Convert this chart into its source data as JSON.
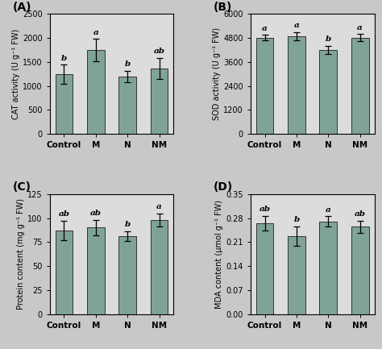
{
  "bar_color": "#7fa399",
  "edge_color": "#333333",
  "bg_color": "#e8e8e8",
  "fig_bg": "#d8d8d8",
  "categories": [
    "Control",
    "M",
    "N",
    "NM"
  ],
  "panels": [
    {
      "label": "A",
      "ylabel": "CAT activity (U g⁻¹ FW)",
      "ylim": [
        0,
        2500
      ],
      "yticks": [
        0,
        500,
        1000,
        1500,
        2000,
        2500
      ],
      "ytick_labels": [
        "0",
        "500",
        "1000",
        "1500",
        "2000",
        "2500"
      ],
      "values": [
        1240,
        1750,
        1200,
        1360
      ],
      "errors": [
        200,
        230,
        120,
        220
      ],
      "sig_labels": [
        "b",
        "a",
        "b",
        "ab"
      ]
    },
    {
      "label": "B",
      "ylabel": "SOD activity (U g⁻¹ FW)",
      "ylim": [
        0,
        6000
      ],
      "yticks": [
        0,
        1200,
        2400,
        3600,
        4800,
        6000
      ],
      "ytick_labels": [
        "0",
        "1200",
        "2400",
        "3600",
        "4800",
        "6000"
      ],
      "values": [
        4820,
        4900,
        4200,
        4820
      ],
      "errors": [
        130,
        200,
        200,
        170
      ],
      "sig_labels": [
        "a",
        "a",
        "b",
        "a"
      ]
    },
    {
      "label": "C",
      "ylabel": "Protein content (mg g⁻¹ FW)",
      "ylim": [
        0,
        125
      ],
      "yticks": [
        0,
        25,
        50,
        75,
        100,
        125
      ],
      "ytick_labels": [
        "0",
        "25",
        "50",
        "75",
        "100",
        "125"
      ],
      "values": [
        87,
        90,
        81,
        98
      ],
      "errors": [
        10,
        8,
        5,
        7
      ],
      "sig_labels": [
        "ab",
        "ab",
        "b",
        "a"
      ]
    },
    {
      "label": "D",
      "ylabel": "MDA content (μmol g⁻¹ FW)",
      "ylim": [
        0.0,
        0.35
      ],
      "yticks": [
        0.0,
        0.07,
        0.14,
        0.21,
        0.28,
        0.35
      ],
      "ytick_labels": [
        "0.00",
        "0.07",
        "0.14",
        "0.21",
        "0.28",
        "0.35"
      ],
      "values": [
        0.265,
        0.228,
        0.27,
        0.255
      ],
      "errors": [
        0.022,
        0.028,
        0.015,
        0.018
      ],
      "sig_labels": [
        "ab",
        "b",
        "a",
        "ab"
      ]
    }
  ]
}
